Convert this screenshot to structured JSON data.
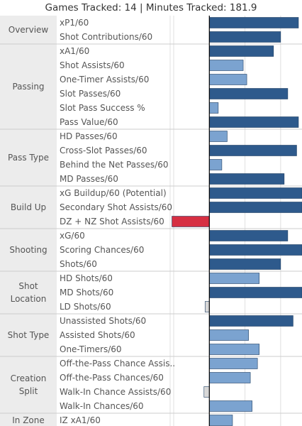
{
  "title": "Games Tracked: 14 | Minutes Tracked: 181.9",
  "colors": {
    "positive": "#2e5a8c",
    "light": "#7ba3d0",
    "negative": "#d62f42",
    "neutral": "#d8d8d8",
    "group_bg": "#ececec",
    "grid": "#e0e0e0",
    "divider": "#cccccc",
    "zero_line": "#000000"
  },
  "chart_data": {
    "type": "bar",
    "orientation": "horizontal",
    "xlim": [
      -1.1,
      2.6
    ],
    "gridlines": [
      -1,
      0,
      1,
      2
    ],
    "groups": [
      {
        "name": [
          "Overview"
        ],
        "metrics": [
          {
            "label": "xP1/60",
            "value": 2.5
          },
          {
            "label": "Shot Contributions/60",
            "value": 2.0
          }
        ]
      },
      {
        "name": [
          "Passing"
        ],
        "metrics": [
          {
            "label": "xA1/60",
            "value": 1.8
          },
          {
            "label": "Shot Assists/60",
            "value": 0.95
          },
          {
            "label": "One-Timer Assists/60",
            "value": 1.05
          },
          {
            "label": "Slot Passes/60",
            "value": 2.2
          },
          {
            "label": "Slot Pass Success %",
            "value": 0.25
          },
          {
            "label": "Pass Value/60",
            "value": 2.5
          }
        ]
      },
      {
        "name": [
          "Pass Type"
        ],
        "metrics": [
          {
            "label": "HD Passes/60",
            "value": 0.5
          },
          {
            "label": "Cross-Slot Passes/60",
            "value": 2.45
          },
          {
            "label": "Behind the Net Passes/60",
            "value": 0.35
          },
          {
            "label": "MD Passes/60",
            "value": 2.1
          }
        ]
      },
      {
        "name": [
          "Build Up"
        ],
        "metrics": [
          {
            "label": "xG Buildup/60 (Potential)",
            "value": 2.6
          },
          {
            "label": "Secondary Shot Assists/60",
            "value": 2.6
          },
          {
            "label": "DZ + NZ Shot Assists/60",
            "value": -1.05
          }
        ]
      },
      {
        "name": [
          "Shooting"
        ],
        "metrics": [
          {
            "label": "xG/60",
            "value": 2.2
          },
          {
            "label": "Scoring Chances/60",
            "value": 2.6
          },
          {
            "label": "Shots/60",
            "value": 2.0
          }
        ]
      },
      {
        "name": [
          "Shot",
          "Location"
        ],
        "metrics": [
          {
            "label": "HD Shots/60",
            "value": 1.4
          },
          {
            "label": "MD Shots/60",
            "value": 2.6
          },
          {
            "label": "LD Shots/60",
            "value": -0.12
          }
        ]
      },
      {
        "name": [
          "Shot Type"
        ],
        "metrics": [
          {
            "label": "Unassisted Shots/60",
            "value": 2.35
          },
          {
            "label": "Assisted Shots/60",
            "value": 1.1
          },
          {
            "label": "One-Timers/60",
            "value": 1.4
          }
        ]
      },
      {
        "name": [
          "Creation",
          "Split"
        ],
        "metrics": [
          {
            "label": "Off-the-Pass Chance Assis..",
            "value": 1.35
          },
          {
            "label": "Off-the-Pass Chances/60",
            "value": 1.15
          },
          {
            "label": "Walk-In Chance Assists/60",
            "value": -0.15
          },
          {
            "label": "Walk-In Chances/60",
            "value": 1.2
          }
        ]
      },
      {
        "name": [
          "In Zone"
        ],
        "metrics": [
          {
            "label": "IZ xA1/60",
            "value": 0.65
          }
        ]
      }
    ]
  }
}
